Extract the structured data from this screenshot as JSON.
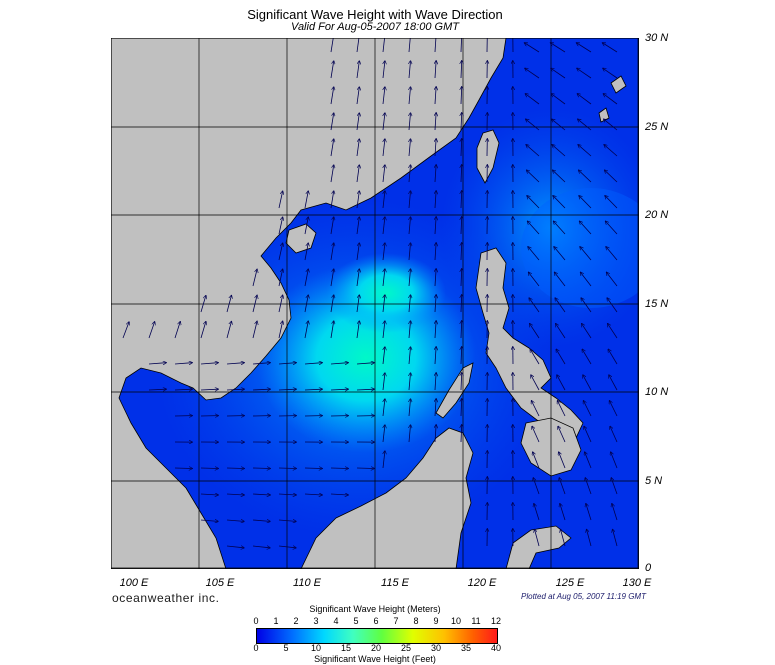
{
  "title": "Significant Wave Height with Wave Direction",
  "subtitle": "Valid For Aug-05-2007 18:00 GMT",
  "lat_labels": [
    "30 N",
    "25 N",
    "20 N",
    "15 N",
    "10 N",
    "5 N",
    "0"
  ],
  "lon_labels": [
    "100 E",
    "105 E",
    "110 E",
    "115 E",
    "120 E",
    "125 E",
    "130 E"
  ],
  "brand": "oceanweather inc.",
  "plotted": "Plotted at Aug 05, 2007 11:19 GMT",
  "legend": {
    "meters_title": "Significant Wave Height (Meters)",
    "feet_title": "Significant Wave Height (Feet)",
    "meters_ticks": [
      "0",
      "1",
      "2",
      "3",
      "4",
      "5",
      "6",
      "7",
      "8",
      "9",
      "10",
      "11",
      "12"
    ],
    "feet_ticks": [
      "0",
      "5",
      "10",
      "15",
      "20",
      "25",
      "30",
      "35",
      "40"
    ]
  },
  "colors": {
    "land": "#c0c0c0",
    "sea_deep": "#0030e8",
    "sea_mid": "#0090ff",
    "sea_high": "#00f0d0"
  }
}
